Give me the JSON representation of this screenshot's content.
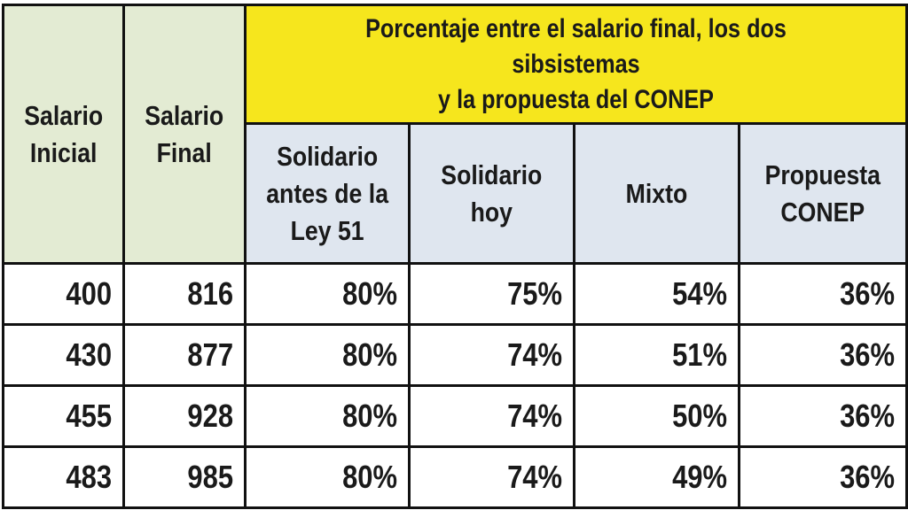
{
  "table": {
    "headers": {
      "salario_inicial": [
        "Salario",
        "Inicial"
      ],
      "salario_final": [
        "Salario",
        "Final"
      ],
      "group_title": [
        "Porcentaje entre el salario final, los dos sibsistemas",
        "y la propuesta del CONEP"
      ],
      "solidario_antes": [
        "Solidario",
        "antes de la",
        "Ley 51"
      ],
      "solidario_hoy": [
        "Solidario",
        "hoy"
      ],
      "mixto": [
        "Mixto"
      ],
      "propuesta_conep": [
        "Propuesta",
        "CONEP"
      ]
    },
    "rows": [
      [
        "400",
        "816",
        "80%",
        "75%",
        "54%",
        "36%"
      ],
      [
        "430",
        "877",
        "80%",
        "74%",
        "51%",
        "36%"
      ],
      [
        "455",
        "928",
        "80%",
        "74%",
        "50%",
        "36%"
      ],
      [
        "483",
        "985",
        "80%",
        "74%",
        "49%",
        "36%"
      ]
    ]
  },
  "colors": {
    "green_header": "#e3ebd3",
    "blue_header": "#dfe6ef",
    "yellow_header": "#f6e61d",
    "border": "#111111",
    "text": "#1a1a1a"
  }
}
